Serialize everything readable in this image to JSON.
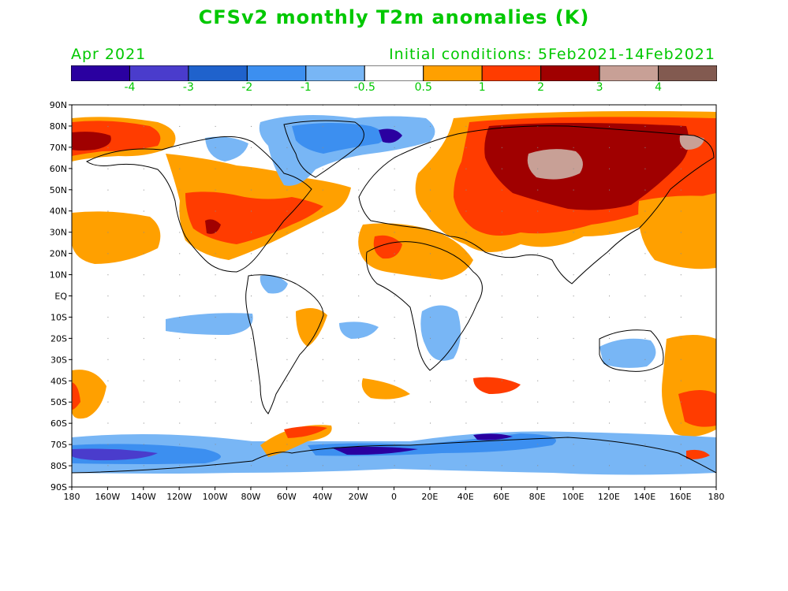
{
  "title": "CFSv2 monthly T2m anomalies (K)",
  "subtitle_left": "Apr 2021",
  "subtitle_right": "Initial conditions: 5Feb2021-14Feb2021",
  "colorbar": {
    "colors": [
      "#2a00a0",
      "#4a3ccc",
      "#1f62cc",
      "#3c8ff0",
      "#78b6f5",
      "#ffffff",
      "#ffa000",
      "#ff3c00",
      "#a00000",
      "#c8a096",
      "#825a50"
    ],
    "tick_labels": [
      "-4",
      "-3",
      "-2",
      "-1",
      "-0.5",
      "0.5",
      "1",
      "2",
      "3",
      "4"
    ]
  },
  "map": {
    "lat_labels": [
      "90N",
      "80N",
      "70N",
      "60N",
      "50N",
      "40N",
      "30N",
      "20N",
      "10N",
      "EQ",
      "10S",
      "20S",
      "30S",
      "40S",
      "50S",
      "60S",
      "70S",
      "80S",
      "90S"
    ],
    "lon_labels": [
      "180",
      "160W",
      "140W",
      "120W",
      "100W",
      "80W",
      "60W",
      "40W",
      "20W",
      "0",
      "20E",
      "40E",
      "60E",
      "80E",
      "100E",
      "120E",
      "140E",
      "160E",
      "180"
    ]
  }
}
